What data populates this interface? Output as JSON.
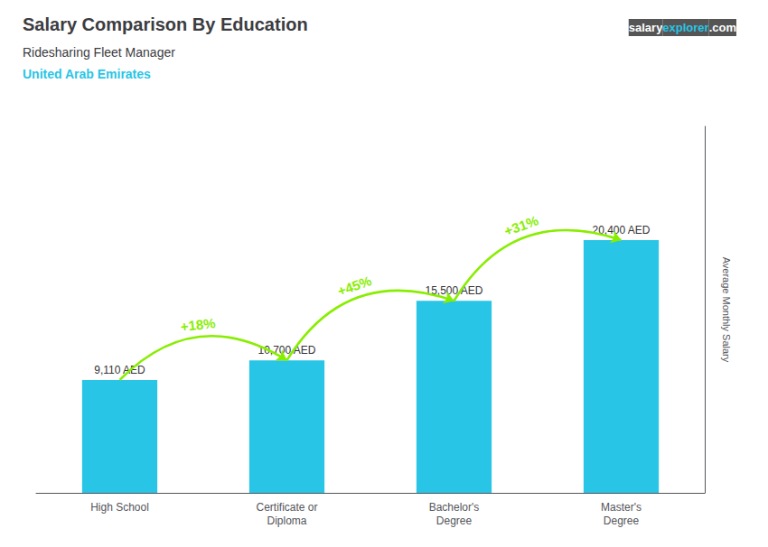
{
  "chart_data": {
    "type": "bar",
    "title": "Salary Comparison By Education",
    "subtitle": [
      {
        "text": "Ridesharing Fleet Manager"
      },
      {
        "text": "United Arab Emirates",
        "color": "#29c5e6"
      }
    ],
    "watermark": [
      {
        "text": "salary",
        "color": "#ffffff"
      },
      {
        "text": "explorer",
        "color": "#29c5e6"
      },
      {
        "text": ".com",
        "color": "#ffffff"
      }
    ],
    "ylabel": "Average Monthly Salary",
    "categories": [
      "High School",
      "Certificate or\nDiploma",
      "Bachelor's\nDegree",
      "Master's\nDegree"
    ],
    "values": [
      9110,
      10700,
      15500,
      20400
    ],
    "value_labels": [
      "9,110 AED",
      "10,700 AED",
      "15,500 AED",
      "20,400 AED"
    ],
    "data_labels": true,
    "color": "#29c5e6",
    "annotations": [
      {
        "text": "+18%",
        "color": "#88ee00"
      },
      {
        "text": "+45%",
        "color": "#88ee00"
      },
      {
        "text": "+31%",
        "color": "#88ee00"
      }
    ],
    "ylim": [
      0,
      29580
    ],
    "tick_labels": "x",
    "grid": false
  }
}
